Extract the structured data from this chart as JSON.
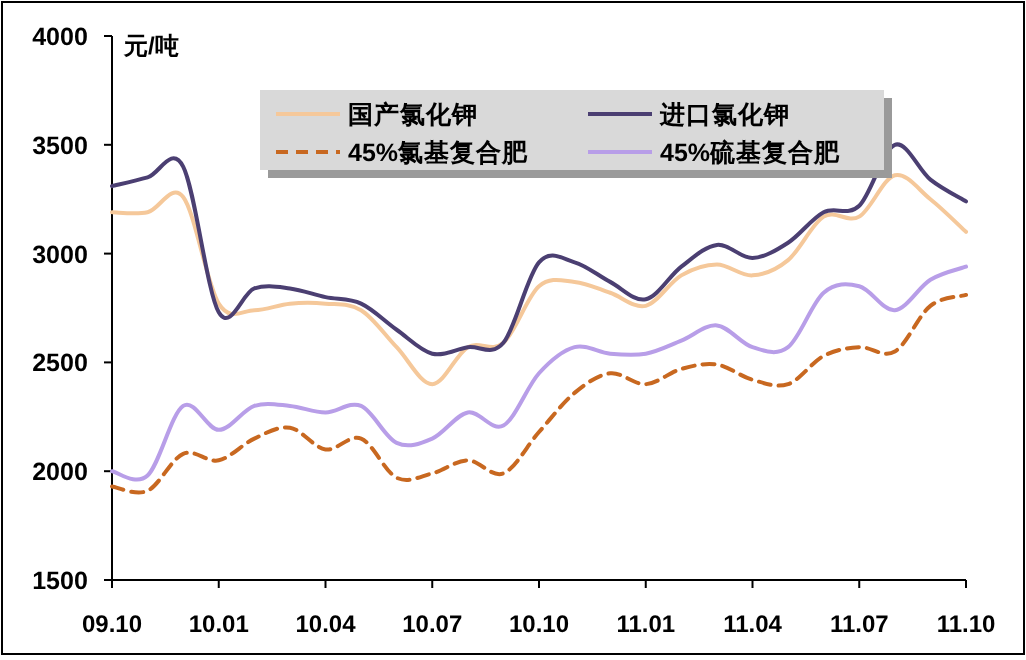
{
  "chart_data": {
    "type": "line",
    "ylabel": "元/吨",
    "categories": [
      "09.10",
      null,
      null,
      "10.01",
      null,
      null,
      "10.04",
      null,
      null,
      "10.07",
      null,
      null,
      "10.10",
      null,
      null,
      "11.01",
      null,
      null,
      "11.04",
      null,
      null,
      "11.07",
      null,
      null,
      "11.10"
    ],
    "ylim": [
      1500,
      4000
    ],
    "yticks": [
      1500,
      2000,
      2500,
      3000,
      3500,
      4000
    ],
    "grid": false,
    "legend": "top",
    "marker": "none",
    "series": [
      {
        "name": "国产氯化钾",
        "color": "#f5c89a",
        "line_style": "solid",
        "values": [
          3190,
          3190,
          3260,
          2770,
          2740,
          2770,
          2770,
          2740,
          2570,
          2400,
          2570,
          2590,
          2850,
          2870,
          2820,
          2760,
          2900,
          2950,
          2900,
          2970,
          3170,
          3170,
          3360,
          3250,
          3100
        ]
      },
      {
        "name": "进口氯化钾",
        "color": "#4b3f72",
        "line_style": "solid",
        "values": [
          3310,
          3350,
          3400,
          2730,
          2840,
          2840,
          2800,
          2770,
          2650,
          2540,
          2570,
          2590,
          2960,
          2960,
          2870,
          2790,
          2940,
          3040,
          2980,
          3050,
          3190,
          3220,
          3500,
          3340,
          3240
        ]
      },
      {
        "name": "45%氯基复合肥",
        "color": "#c86820",
        "line_style": "dashed",
        "values": [
          1930,
          1910,
          2080,
          2050,
          2150,
          2200,
          2100,
          2150,
          1970,
          1990,
          2050,
          1990,
          2180,
          2360,
          2450,
          2400,
          2470,
          2490,
          2420,
          2400,
          2530,
          2570,
          2550,
          2760,
          2810
        ]
      },
      {
        "name": "45%硫基复合肥",
        "color": "#b89ee8",
        "line_style": "solid",
        "values": [
          2000,
          1980,
          2300,
          2190,
          2300,
          2300,
          2270,
          2300,
          2130,
          2150,
          2270,
          2210,
          2450,
          2570,
          2540,
          2540,
          2600,
          2670,
          2570,
          2570,
          2820,
          2850,
          2740,
          2880,
          2940
        ]
      }
    ]
  }
}
